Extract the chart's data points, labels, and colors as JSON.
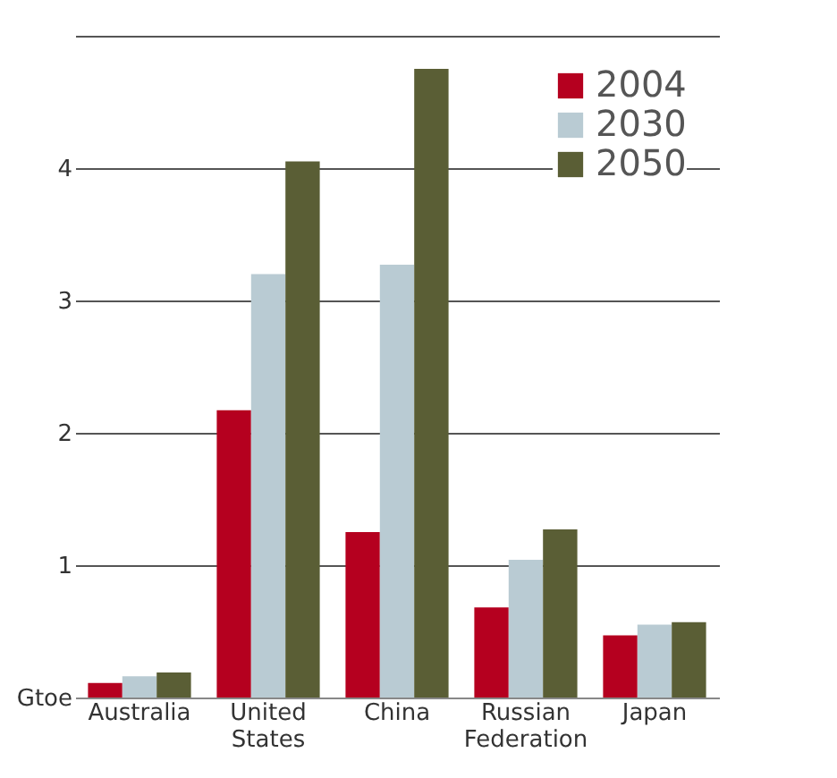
{
  "chart_data": {
    "type": "bar",
    "categories": [
      "Australia",
      "United States",
      "China",
      "Russian Federation",
      "Japan"
    ],
    "series": [
      {
        "name": "2004",
        "color": "#b5001f",
        "values": [
          0.11,
          2.17,
          1.25,
          0.68,
          0.47
        ]
      },
      {
        "name": "2030",
        "color": "#b9cbd3",
        "values": [
          0.16,
          3.2,
          3.27,
          1.04,
          0.55
        ]
      },
      {
        "name": "2050",
        "color": "#5a5e35",
        "values": [
          0.19,
          4.05,
          4.75,
          1.27,
          0.57
        ]
      }
    ],
    "ylim": [
      0,
      5
    ],
    "yticks": [
      {
        "value": 0,
        "label": "Gtoe"
      },
      1,
      2,
      3,
      4,
      {
        "value": 5,
        "label": null
      }
    ],
    "grid": "y",
    "legend": "top right"
  }
}
